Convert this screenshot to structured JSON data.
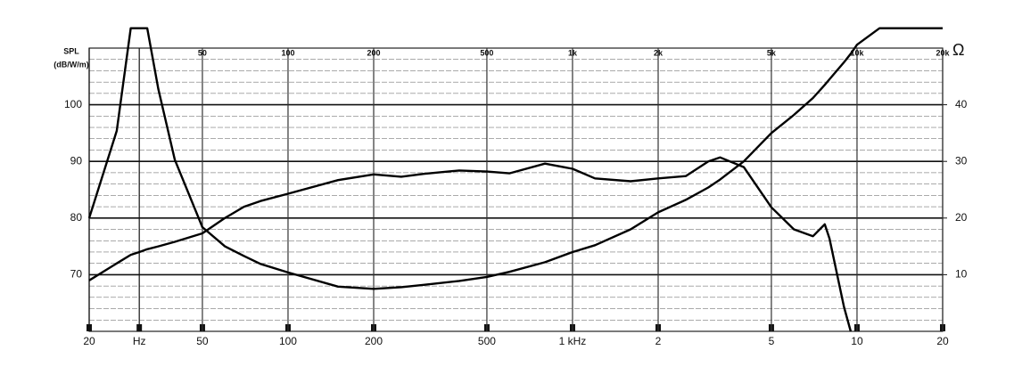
{
  "chart_data": {
    "type": "line",
    "y_label": "SPL",
    "y_unit": "(dB/W/m)",
    "y2_label": "Ω",
    "log_x": true,
    "grid": true,
    "xlim": [
      20,
      20000
    ],
    "xticks": [
      20,
      {
        "value": 30,
        "label": "Hz"
      },
      50,
      100,
      200,
      500,
      {
        "value": 1000,
        "label": "1 kHz"
      },
      {
        "value": 2000,
        "label": "2"
      },
      {
        "value": 5000,
        "label": "5"
      },
      {
        "value": 10000,
        "label": "10"
      },
      {
        "value": 20000,
        "label": "20"
      }
    ],
    "top_xticks": [
      50,
      100,
      200,
      500,
      {
        "value": 1000,
        "label": "1k"
      },
      {
        "value": 2000,
        "label": "2k"
      },
      {
        "value": 5000,
        "label": "5k"
      },
      {
        "value": 10000,
        "label": "10k"
      },
      {
        "value": 20000,
        "label": "20k"
      }
    ],
    "ylim": [
      60,
      110
    ],
    "yticks": [
      70,
      80,
      90,
      100
    ],
    "y2lim": [
      0,
      50
    ],
    "y2ticks": [
      10,
      20,
      30,
      40
    ],
    "x": [
      20,
      25,
      28,
      30,
      32,
      35,
      40,
      50,
      60,
      70,
      80,
      100,
      150,
      200,
      250,
      300,
      400,
      500,
      600,
      800,
      1000,
      1200,
      1600,
      2000,
      2500,
      3000,
      3300,
      4000,
      5000,
      6000,
      7000,
      7700,
      8000,
      9000,
      9500,
      10000,
      12000,
      20000
    ],
    "series": [
      {
        "name": "SPL",
        "color": "#000000",
        "values": [
          69,
          72,
          73.5,
          74,
          74.5,
          75,
          75.8,
          77.3,
          80,
          82,
          83,
          84.3,
          86.7,
          87.7,
          87.3,
          87.8,
          88.4,
          88.2,
          87.9,
          89.6,
          88.7,
          87,
          86.5,
          87,
          87.4,
          90,
          90.7,
          89,
          81.9,
          78,
          76.8,
          78.9,
          76.4,
          64.3,
          60,
          null,
          null,
          null
        ]
      },
      {
        "name": "Impedance",
        "color": "#000000",
        "axis": "y2",
        "values": [
          20,
          35.4,
          53.5,
          53.5,
          53.5,
          42.8,
          30.3,
          18.4,
          15,
          13.3,
          11.9,
          10.4,
          7.9,
          7.5,
          7.8,
          8.2,
          8.9,
          9.6,
          10.5,
          12.2,
          14,
          15.2,
          18,
          21,
          23.2,
          25.4,
          26.8,
          30,
          35,
          38.2,
          41.2,
          43.5,
          44.5,
          47.5,
          49,
          50.6,
          53.5,
          53.5
        ]
      }
    ]
  }
}
